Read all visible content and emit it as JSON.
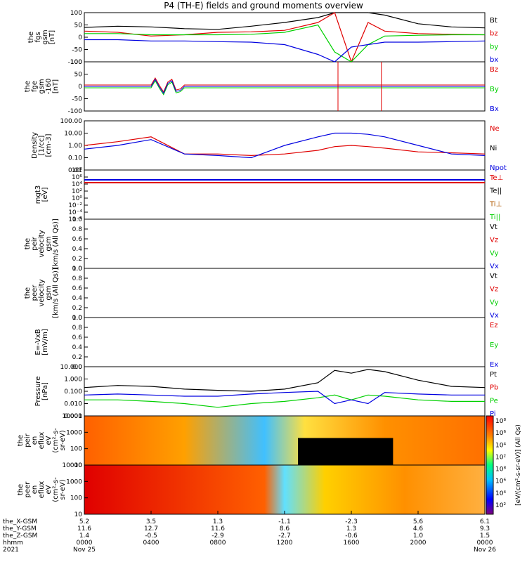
{
  "title": "P4 (TH-E) fields and ground moments overview",
  "colors": {
    "black": "#000000",
    "red": "#e00000",
    "green": "#00d000",
    "blue": "#0000e0",
    "brown": "#b05a00"
  },
  "panels": [
    {
      "id": "fgs",
      "ylabel": [
        "the",
        "fgs",
        "gsm",
        "[nT]"
      ],
      "ticks": [
        "100",
        "50",
        "0",
        "-50",
        "-100"
      ],
      "legend": [
        {
          "text": "Bt",
          "color": "black"
        },
        {
          "text": "bz",
          "color": "red"
        },
        {
          "text": "by",
          "color": "green"
        },
        {
          "text": "bx",
          "color": "blue"
        }
      ]
    },
    {
      "id": "fge",
      "ylabel": [
        "the",
        "fge",
        "gsm",
        "-160",
        "[nT]"
      ],
      "ticks": [
        "100",
        "50",
        "0",
        "-50",
        "-100"
      ],
      "legend": [
        {
          "text": "Bz",
          "color": "red"
        },
        {
          "text": "By",
          "color": "green"
        },
        {
          "text": "Bx",
          "color": "blue"
        }
      ]
    },
    {
      "id": "density",
      "ylabel": [
        "Density",
        "[1/cc]",
        "[cm-3]"
      ],
      "ticks": [
        "100.00",
        "10.00",
        "1.00",
        "0.10",
        "0.01"
      ],
      "legend": [
        {
          "text": "Ne",
          "color": "red"
        },
        {
          "text": "Ni",
          "color": "black"
        },
        {
          "text": "Npot",
          "color": "blue"
        }
      ]
    },
    {
      "id": "temp",
      "ylabel": [
        "mgt3",
        "[eV]"
      ],
      "ticks": [
        "10⁸",
        "10⁶",
        "10⁴",
        "10²",
        "10⁰",
        "10⁻²",
        "10⁻⁴",
        "10⁻⁶"
      ],
      "legend": [
        {
          "text": "Te⊥",
          "color": "red"
        },
        {
          "text": "Te||",
          "color": "black"
        },
        {
          "text": "Ti⊥",
          "color": "brown"
        },
        {
          "text": "Ti||",
          "color": "green"
        }
      ]
    },
    {
      "id": "peir_vel",
      "ylabel": [
        "the",
        "peir",
        "velocity",
        "gsm",
        "[km/s (All Qs)]"
      ],
      "ticks": [
        "1.0",
        "0.8",
        "0.6",
        "0.4",
        "0.2",
        "0.0"
      ],
      "legend": [
        {
          "text": "Vt",
          "color": "black"
        },
        {
          "text": "Vz",
          "color": "red"
        },
        {
          "text": "Vy",
          "color": "green"
        },
        {
          "text": "Vx",
          "color": "blue"
        }
      ]
    },
    {
      "id": "peer_vel",
      "ylabel": [
        "the",
        "peer",
        "velocity",
        "gsm",
        "[km/s (All Qs)]"
      ],
      "ticks": [
        "1.0",
        "0.8",
        "0.6",
        "0.4",
        "0.2",
        "0.0"
      ],
      "legend": [
        {
          "text": "Vt",
          "color": "black"
        },
        {
          "text": "Vz",
          "color": "red"
        },
        {
          "text": "Vy",
          "color": "green"
        },
        {
          "text": "Vx",
          "color": "blue"
        }
      ]
    },
    {
      "id": "efield",
      "ylabel": [
        "E=-VxB",
        "[mV/m]"
      ],
      "ticks": [
        "1.0",
        "0.8",
        "0.6",
        "0.4",
        "0.2",
        "0.0"
      ],
      "legend": [
        {
          "text": "Ez",
          "color": "red"
        },
        {
          "text": "Ey",
          "color": "green"
        },
        {
          "text": "Ex",
          "color": "blue"
        }
      ]
    },
    {
      "id": "pressure",
      "ylabel": [
        "Pressure",
        "[nPa]"
      ],
      "ticks": [
        "10.000",
        "1.000",
        "0.100",
        "0.010",
        "0.001"
      ],
      "legend": [
        {
          "text": "Pt",
          "color": "black"
        },
        {
          "text": "Pb",
          "color": "red"
        },
        {
          "text": "Pe",
          "color": "green"
        },
        {
          "text": "Pi",
          "color": "blue"
        }
      ]
    },
    {
      "id": "peir_spec",
      "ylabel": [
        "the",
        "peir",
        "en",
        "eflux",
        "eV",
        "(cm²-s-",
        "sr-eV)"
      ],
      "ticks": [
        "10000",
        "1000",
        "100",
        "10"
      ],
      "legend": []
    },
    {
      "id": "peer_spec",
      "ylabel": [
        "the",
        "peer",
        "en",
        "eflux",
        "eV",
        "(cm²-s-",
        "sr-eV)"
      ],
      "ticks": [
        "10000",
        "1000",
        "100",
        "10"
      ],
      "legend": []
    }
  ],
  "colorbar": {
    "label": "[eV/(cm²-s-sr-eV)] (All Qs)",
    "ticks": [
      "10⁸",
      "10⁶",
      "10⁴",
      "10²",
      "10⁸",
      "10⁶",
      "10⁴",
      "10²"
    ]
  },
  "x_axis": {
    "row_labels": [
      "the_X-GSM",
      "the_Y-GSM",
      "the_Z-GSM",
      "hhmm",
      "2021"
    ],
    "columns": [
      {
        "x": [
          "5.2",
          "11.6",
          "1.4",
          "0000",
          "Nov 25"
        ]
      },
      {
        "x": [
          "3.5",
          "12.7",
          "-0.5",
          "0400",
          ""
        ]
      },
      {
        "x": [
          "1.3",
          "11.6",
          "-2.9",
          "0800",
          ""
        ]
      },
      {
        "x": [
          "-1.1",
          "8.6",
          "-2.7",
          "1200",
          ""
        ]
      },
      {
        "x": [
          "-2.3",
          "1.3",
          "-0.6",
          "1600",
          ""
        ]
      },
      {
        "x": [
          "5.6",
          "4.6",
          "1.0",
          "2000",
          ""
        ]
      },
      {
        "x": [
          "6.1",
          "9.3",
          "1.5",
          "0000",
          "Nov 26"
        ]
      }
    ]
  },
  "chart_data": {
    "type": "line",
    "title": "P4 (TH-E) fields and ground moments overview",
    "x_unit": "hhmm",
    "x_range": [
      "2021-11-25 00:00",
      "2021-11-26 00:00"
    ],
    "series": [
      {
        "name": "Bt",
        "panel": "fgs",
        "t": [
          0,
          2,
          4,
          6,
          8,
          10,
          12,
          14,
          15,
          16,
          17,
          18,
          20,
          22,
          24
        ],
        "y": [
          40,
          45,
          42,
          35,
          32,
          45,
          60,
          80,
          100,
          100,
          100,
          90,
          55,
          42,
          38
        ]
      },
      {
        "name": "bz",
        "panel": "fgs",
        "t": [
          0,
          2,
          4,
          6,
          8,
          10,
          12,
          14,
          15,
          16,
          17,
          18,
          20,
          22,
          24
        ],
        "y": [
          25,
          20,
          5,
          10,
          20,
          22,
          28,
          60,
          100,
          -100,
          60,
          25,
          15,
          12,
          10
        ]
      },
      {
        "name": "by",
        "panel": "fgs",
        "t": [
          0,
          2,
          4,
          6,
          8,
          10,
          12,
          14,
          15,
          16,
          17,
          18,
          20,
          22,
          24
        ],
        "y": [
          15,
          15,
          10,
          10,
          10,
          12,
          20,
          50,
          -60,
          -100,
          -30,
          5,
          8,
          10,
          10
        ]
      },
      {
        "name": "bx",
        "panel": "fgs",
        "t": [
          0,
          2,
          4,
          6,
          8,
          10,
          12,
          14,
          15,
          16,
          17,
          18,
          20,
          22,
          24
        ],
        "y": [
          -10,
          -10,
          -15,
          -15,
          -18,
          -20,
          -30,
          -70,
          -100,
          -40,
          -30,
          -20,
          -20,
          -18,
          -15
        ]
      },
      {
        "name": "Ne",
        "panel": "density",
        "t": [
          0,
          2,
          4,
          6,
          8,
          10,
          12,
          14,
          15,
          16,
          17,
          18,
          20,
          22,
          24
        ],
        "y": [
          1,
          2,
          5,
          0.2,
          0.2,
          0.15,
          0.2,
          0.4,
          0.8,
          1,
          0.8,
          0.6,
          0.3,
          0.25,
          0.2
        ]
      },
      {
        "name": "Npot",
        "panel": "density",
        "t": [
          0,
          2,
          4,
          6,
          8,
          10,
          12,
          14,
          15,
          16,
          17,
          18,
          20,
          22,
          24
        ],
        "y": [
          0.5,
          1,
          3,
          0.2,
          0.15,
          0.1,
          1,
          5,
          10,
          10,
          8,
          5,
          1,
          0.2,
          0.15
        ]
      },
      {
        "name": "Pt",
        "panel": "pressure",
        "t": [
          0,
          2,
          4,
          6,
          8,
          10,
          12,
          14,
          15,
          16,
          17,
          18,
          20,
          22,
          24
        ],
        "y": [
          0.2,
          0.3,
          0.25,
          0.15,
          0.12,
          0.1,
          0.15,
          0.5,
          5,
          3,
          6,
          4,
          0.8,
          0.25,
          0.2
        ]
      },
      {
        "name": "Pe",
        "panel": "pressure",
        "t": [
          0,
          2,
          4,
          6,
          8,
          10,
          12,
          14,
          15,
          16,
          17,
          18,
          20,
          22,
          24
        ],
        "y": [
          0.02,
          0.02,
          0.015,
          0.01,
          0.005,
          0.01,
          0.015,
          0.03,
          0.05,
          0.02,
          0.05,
          0.04,
          0.02,
          0.015,
          0.015
        ]
      },
      {
        "name": "Pi",
        "panel": "pressure",
        "t": [
          0,
          2,
          4,
          6,
          8,
          10,
          12,
          14,
          15,
          16,
          17,
          18,
          20,
          22,
          24
        ],
        "y": [
          0.05,
          0.06,
          0.05,
          0.04,
          0.04,
          0.06,
          0.08,
          0.1,
          0.01,
          0.02,
          0.01,
          0.08,
          0.06,
          0.05,
          0.05
        ]
      }
    ]
  }
}
